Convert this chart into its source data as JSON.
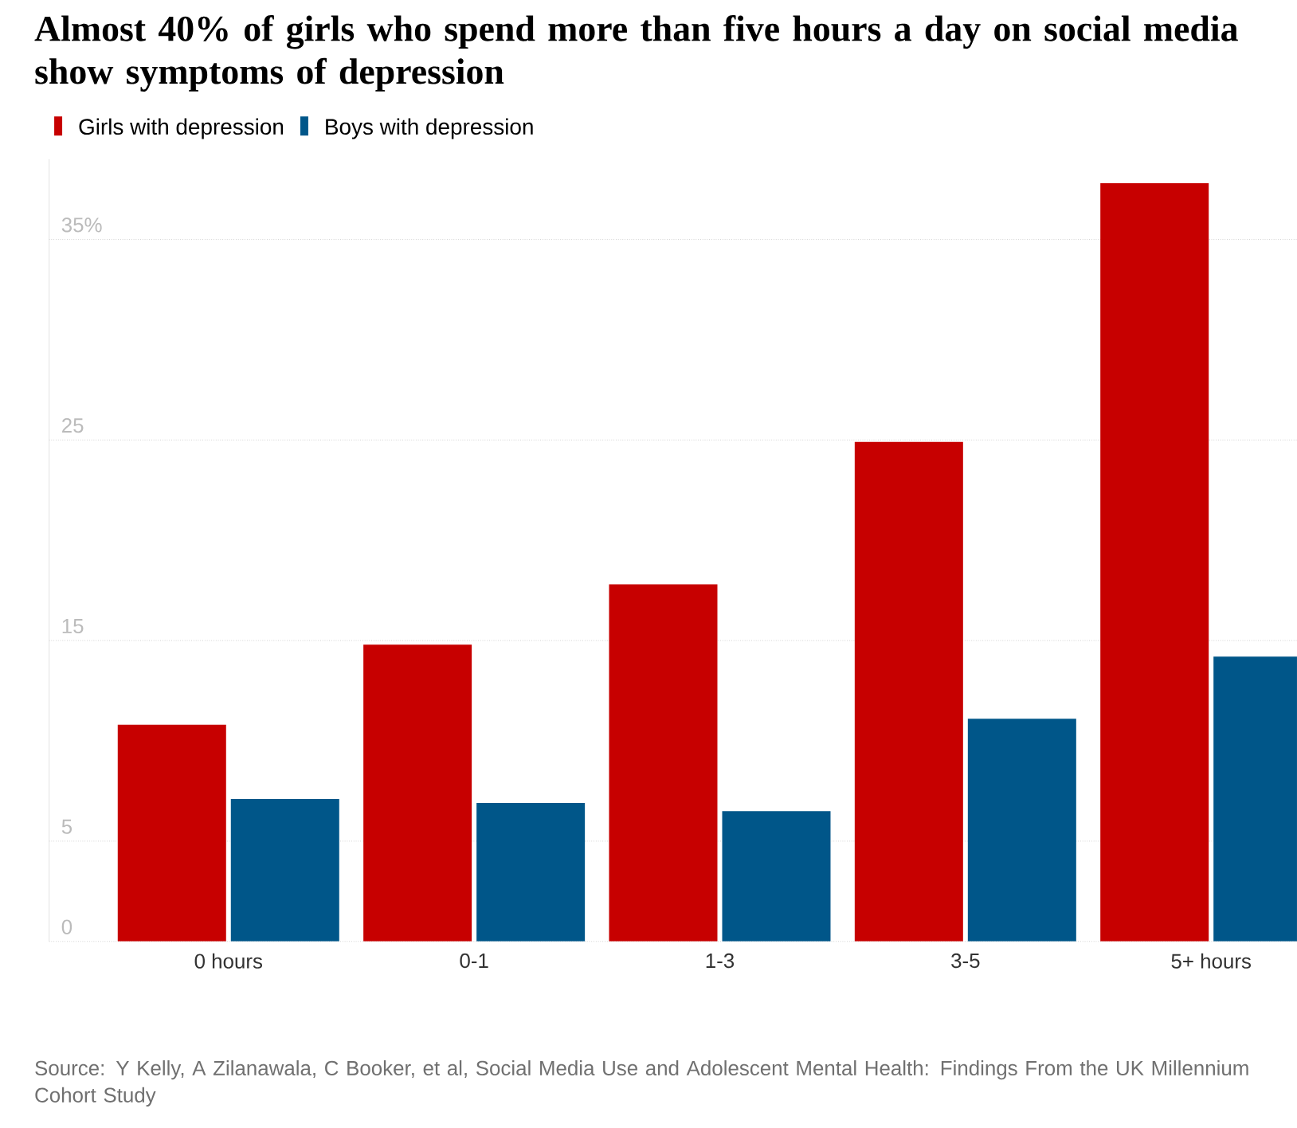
{
  "chart_data": {
    "type": "bar",
    "title": "Almost 40% of girls who spend more than five hours a day on social media show symptoms of depression",
    "categories": [
      "0 hours",
      "0-1",
      "1-3",
      "3-5",
      "5+ hours"
    ],
    "series": [
      {
        "name": "Girls with depression",
        "color": "#c70000",
        "values": [
          10.8,
          14.8,
          17.8,
          24.9,
          37.8
        ]
      },
      {
        "name": "Boys with depression",
        "color": "#005689",
        "values": [
          7.1,
          6.9,
          6.5,
          11.1,
          14.2
        ]
      }
    ],
    "ylim": [
      0,
      39
    ],
    "yticks": [
      0,
      5,
      15,
      25,
      {
        "value": 35,
        "label": "35%"
      }
    ],
    "grid": "y",
    "legend": "top left",
    "annotations": [
      "Source: Y Kelly, A Zilanawala, C Booker, et al, Social Media Use and Adolescent Mental Health: Findings From the UK Millennium Cohort Study"
    ]
  }
}
